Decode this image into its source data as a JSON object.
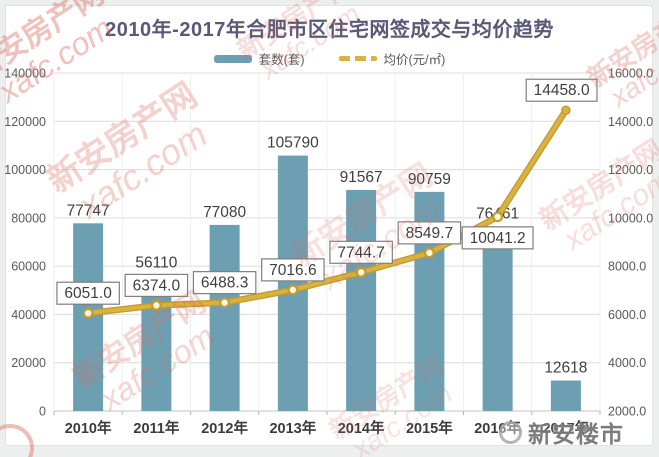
{
  "title": "2010年-2017年合肥市区住宅网签成交与均价趋势",
  "watermark": {
    "brand_line1": "新安房产网",
    "brand_line2": "xafc.com",
    "footer_brand": "新安楼市"
  },
  "chart_data": {
    "type": "bar+line",
    "title": "2010年-2017年合肥市区住宅网签成交与均价趋势",
    "categories": [
      "2010年",
      "2011年",
      "2012年",
      "2013年",
      "2014年",
      "2015年",
      "2016年",
      "2017年"
    ],
    "series": [
      {
        "name": "套数(套)",
        "type": "bar",
        "axis": "left",
        "color": "#6d9fb2",
        "values": [
          77747,
          56110,
          77080,
          105790,
          91567,
          90759,
          76461,
          12618
        ],
        "labels": [
          "77747",
          "56110",
          "77080",
          "105790",
          "91567",
          "90759",
          "76461",
          "12618"
        ]
      },
      {
        "name": "均价(元/㎡)",
        "type": "line",
        "axis": "right",
        "color": "#d9b240",
        "color_dark": "#c49b2d",
        "values": [
          6051.0,
          6374.0,
          6488.3,
          7016.6,
          7744.7,
          8549.7,
          10041.2,
          14458.0
        ],
        "labels": [
          "6051.0",
          "6374.0",
          "6488.3",
          "7016.6",
          "7744.7",
          "8549.7",
          "10041.2",
          "14458.0"
        ],
        "label_positions": [
          "above",
          "above",
          "above",
          "above",
          "above",
          "above",
          "below",
          "above"
        ]
      }
    ],
    "left_axis": {
      "min": 0,
      "max": 140000,
      "step": 20000,
      "ticks": [
        "0",
        "20000",
        "40000",
        "60000",
        "80000",
        "100000",
        "120000",
        "140000"
      ]
    },
    "right_axis": {
      "min": 2000,
      "max": 16000,
      "step": 2000,
      "ticks": [
        "2000.0",
        "4000.0",
        "6000.0",
        "8000.0",
        "10000.0",
        "12000.0",
        "14000.0",
        "16000.0"
      ]
    },
    "grid": true,
    "legend_position": "top"
  }
}
